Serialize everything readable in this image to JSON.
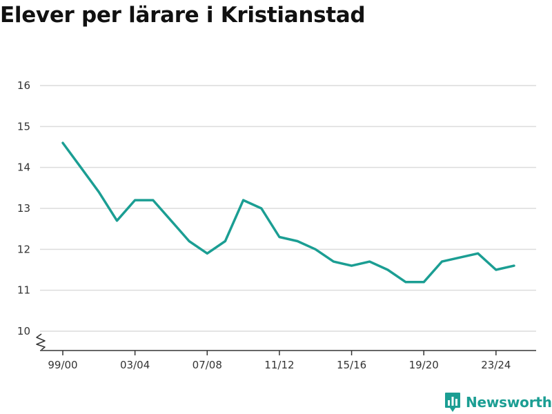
{
  "page": {
    "title": "Elever per lärare i Kristianstad"
  },
  "brand": {
    "name": "Newsworthy",
    "icon": "bar-chart-speech-bubble-icon",
    "color": "#1b9e93"
  },
  "chart_data": {
    "type": "line",
    "title": "Elever per lärare i Kristianstad",
    "xlabel": "",
    "ylabel": "",
    "x": [
      "99/00",
      "00/01",
      "01/02",
      "02/03",
      "03/04",
      "04/05",
      "05/06",
      "06/07",
      "07/08",
      "08/09",
      "09/10",
      "10/11",
      "11/12",
      "12/13",
      "13/14",
      "14/15",
      "15/16",
      "16/17",
      "17/18",
      "18/19",
      "19/20",
      "20/21",
      "21/22",
      "22/23",
      "23/24",
      "24/25"
    ],
    "x_tick_labels": [
      "99/00",
      "03/04",
      "07/08",
      "11/12",
      "15/16",
      "19/20",
      "23/24"
    ],
    "y_ticks": [
      10,
      11,
      12,
      13,
      14,
      15,
      16
    ],
    "ylim": [
      9.5,
      16
    ],
    "y_axis_break": true,
    "grid": true,
    "legend": "none",
    "series": [
      {
        "color": "#1b9e93",
        "values": [
          14.6,
          14.0,
          13.4,
          12.7,
          13.2,
          13.2,
          12.7,
          12.2,
          11.9,
          12.2,
          13.2,
          13.0,
          12.3,
          12.2,
          12.0,
          11.7,
          11.6,
          11.7,
          11.5,
          11.2,
          11.2,
          11.7,
          11.8,
          11.9,
          11.5,
          11.6
        ]
      }
    ]
  }
}
